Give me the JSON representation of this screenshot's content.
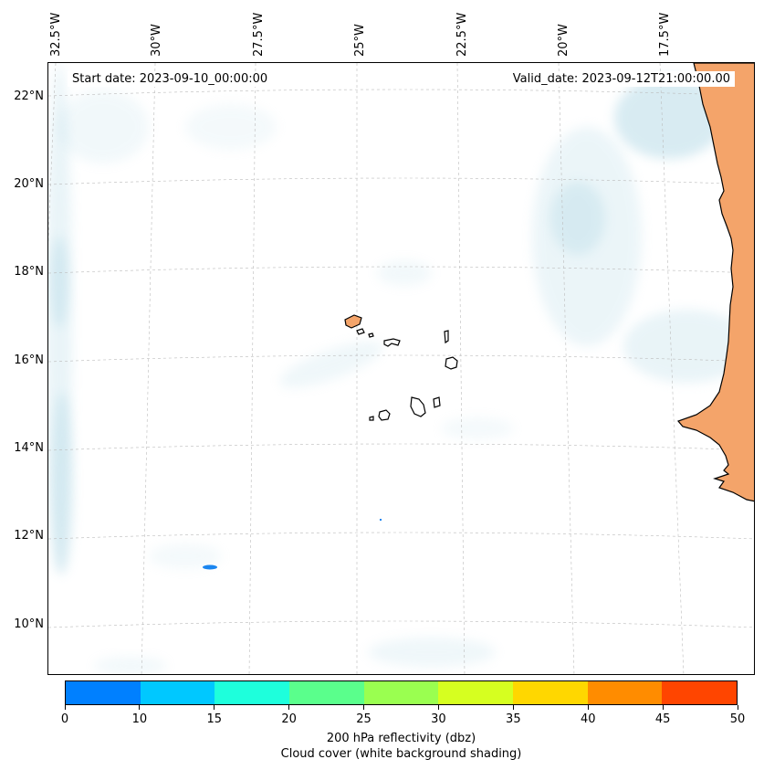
{
  "map": {
    "start_date_label": "Start date: 2023-09-10_00:00:00",
    "valid_date_label": "Valid_date: 2023-09-12T21:00:00.00",
    "lon_ticks": [
      "32.5°W",
      "30°W",
      "27.5°W",
      "25°W",
      "22.5°W",
      "20°W",
      "17.5°W"
    ],
    "lat_ticks": [
      "22°N",
      "20°N",
      "18°N",
      "16°N",
      "14°N",
      "12°N",
      "10°N"
    ],
    "land_color": "#f4a46a",
    "cloud_color": "#a9d4e3",
    "reflectivity_echo_color": "#1a86f0",
    "gridline_color": "#bbbbbb"
  },
  "colorbar": {
    "ticks": [
      "0",
      "10",
      "15",
      "20",
      "25",
      "30",
      "35",
      "40",
      "45",
      "50"
    ],
    "colors": [
      "#0080ff",
      "#00c8ff",
      "#1effdc",
      "#5aff8c",
      "#9aff50",
      "#d6ff20",
      "#ffd700",
      "#ff8c00",
      "#ff4500"
    ],
    "label_line1": "200 hPa reflectivity (dbz)",
    "label_line2": "Cloud cover (white background shading)"
  }
}
